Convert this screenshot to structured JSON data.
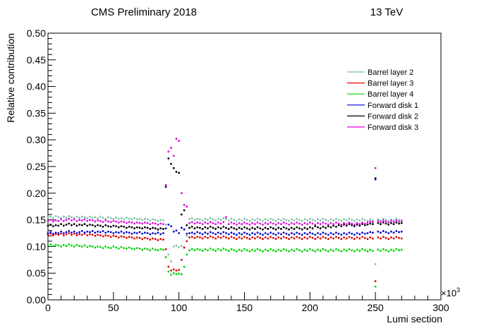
{
  "header": {
    "left": "CMS Preliminary 2018",
    "right": "13 TeV"
  },
  "chart_data": {
    "type": "scatter",
    "xlabel": "Lumi section",
    "ylabel": "Relative contribution",
    "x_multiplier_label": "×10",
    "x_multiplier_exp": "3",
    "xlim": [
      0,
      300
    ],
    "ylim": [
      0,
      0.5
    ],
    "x_ticks": [
      0,
      50,
      100,
      150,
      200,
      250,
      300
    ],
    "x_tick_labels": [
      "0",
      "50",
      "100",
      "150",
      "200",
      "250",
      "300"
    ],
    "y_ticks": [
      0,
      0.05,
      0.1,
      0.15,
      0.2,
      0.25,
      0.3,
      0.35,
      0.4,
      0.45,
      0.5
    ],
    "y_tick_labels": [
      "0.00",
      "0.05",
      "0.10",
      "0.15",
      "0.20",
      "0.25",
      "0.30",
      "0.35",
      "0.40",
      "0.45",
      "0.50"
    ],
    "grid": false,
    "legend_position": "top-right",
    "x": [
      0,
      2,
      4,
      6,
      8,
      10,
      12,
      14,
      16,
      18,
      20,
      22,
      24,
      26,
      28,
      30,
      32,
      34,
      36,
      38,
      40,
      42,
      44,
      46,
      48,
      50,
      52,
      54,
      56,
      58,
      60,
      62,
      64,
      66,
      68,
      70,
      72,
      74,
      76,
      78,
      80,
      82,
      84,
      86,
      88,
      90,
      92,
      94,
      96,
      98,
      100,
      102,
      104,
      106,
      108,
      110,
      112,
      114,
      116,
      118,
      120,
      122,
      124,
      126,
      128,
      130,
      132,
      134,
      136,
      138,
      140,
      142,
      144,
      146,
      148,
      150,
      152,
      154,
      156,
      158,
      160,
      162,
      164,
      166,
      168,
      170,
      172,
      174,
      176,
      178,
      180,
      182,
      184,
      186,
      188,
      190,
      192,
      194,
      196,
      198,
      200,
      202,
      204,
      206,
      208,
      210,
      212,
      214,
      216,
      218,
      220,
      222,
      224,
      226,
      228,
      230,
      232,
      234,
      236,
      238,
      240,
      242,
      244,
      246,
      248,
      250,
      252,
      254,
      256,
      258,
      260,
      262,
      264,
      266,
      268,
      270
    ],
    "series": [
      {
        "name": "Barrel layer 2",
        "color": "#7fbfa5",
        "values": [
          0.155,
          0.156,
          0.154,
          0.157,
          0.155,
          0.153,
          0.156,
          0.154,
          0.157,
          0.155,
          0.153,
          0.156,
          0.154,
          0.156,
          0.155,
          0.153,
          0.156,
          0.154,
          0.155,
          0.153,
          0.156,
          0.154,
          0.152,
          0.155,
          0.153,
          0.152,
          0.154,
          0.152,
          0.153,
          0.151,
          0.154,
          0.152,
          0.151,
          0.153,
          0.151,
          0.152,
          0.15,
          0.152,
          0.151,
          0.149,
          0.151,
          0.15,
          0.148,
          0.15,
          0.149,
          0.141,
          0.085,
          0.072,
          0.1,
          0.102,
          0.099,
          0.101,
          0.098,
          0.12,
          0.152,
          0.153,
          0.15,
          0.152,
          0.151,
          0.149,
          0.152,
          0.15,
          0.153,
          0.151,
          0.149,
          0.152,
          0.15,
          0.153,
          0.151,
          0.149,
          0.152,
          0.15,
          0.148,
          0.151,
          0.149,
          0.152,
          0.15,
          0.148,
          0.151,
          0.149,
          0.152,
          0.15,
          0.148,
          0.151,
          0.149,
          0.152,
          0.15,
          0.148,
          0.151,
          0.149,
          0.152,
          0.15,
          0.148,
          0.151,
          0.149,
          0.152,
          0.15,
          0.148,
          0.151,
          0.149,
          0.152,
          0.15,
          0.148,
          0.151,
          0.149,
          0.152,
          0.15,
          0.148,
          0.151,
          0.149,
          0.152,
          0.15,
          0.148,
          0.151,
          0.149,
          0.152,
          0.15,
          0.148,
          0.151,
          0.149,
          0.152,
          0.15,
          0.148,
          0.151,
          0.149,
          0.067,
          0.151,
          0.149,
          0.152,
          0.15,
          0.148,
          0.151,
          0.149,
          0.152,
          0.15,
          0.149
        ]
      },
      {
        "name": "Barrel layer 3",
        "color": "#e00000",
        "values": [
          0.122,
          0.124,
          0.121,
          0.123,
          0.122,
          0.124,
          0.121,
          0.123,
          0.125,
          0.122,
          0.124,
          0.121,
          0.123,
          0.122,
          0.124,
          0.121,
          0.123,
          0.122,
          0.12,
          0.122,
          0.121,
          0.119,
          0.121,
          0.12,
          0.118,
          0.12,
          0.119,
          0.117,
          0.119,
          0.118,
          0.116,
          0.118,
          0.117,
          0.115,
          0.117,
          0.116,
          0.114,
          0.116,
          0.115,
          0.113,
          0.115,
          0.114,
          0.112,
          0.114,
          0.113,
          0.095,
          0.062,
          0.055,
          0.057,
          0.055,
          0.056,
          0.075,
          0.098,
          0.11,
          0.117,
          0.118,
          0.116,
          0.118,
          0.117,
          0.115,
          0.118,
          0.116,
          0.119,
          0.117,
          0.115,
          0.118,
          0.116,
          0.119,
          0.117,
          0.115,
          0.118,
          0.116,
          0.114,
          0.117,
          0.115,
          0.118,
          0.116,
          0.114,
          0.117,
          0.115,
          0.118,
          0.116,
          0.114,
          0.117,
          0.115,
          0.118,
          0.116,
          0.114,
          0.117,
          0.115,
          0.118,
          0.116,
          0.114,
          0.117,
          0.115,
          0.118,
          0.116,
          0.114,
          0.117,
          0.115,
          0.118,
          0.116,
          0.114,
          0.117,
          0.115,
          0.118,
          0.116,
          0.114,
          0.117,
          0.115,
          0.118,
          0.116,
          0.114,
          0.117,
          0.115,
          0.118,
          0.116,
          0.114,
          0.117,
          0.115,
          0.118,
          0.116,
          0.114,
          0.117,
          0.115,
          0.035,
          0.117,
          0.115,
          0.118,
          0.116,
          0.114,
          0.117,
          0.115,
          0.118,
          0.116,
          0.115
        ]
      },
      {
        "name": "Barrel layer 4",
        "color": "#00d000",
        "values": [
          0.102,
          0.104,
          0.101,
          0.103,
          0.102,
          0.1,
          0.103,
          0.101,
          0.104,
          0.102,
          0.1,
          0.103,
          0.101,
          0.1,
          0.102,
          0.099,
          0.101,
          0.1,
          0.098,
          0.1,
          0.099,
          0.097,
          0.1,
          0.098,
          0.097,
          0.1,
          0.098,
          0.096,
          0.099,
          0.097,
          0.096,
          0.098,
          0.096,
          0.095,
          0.097,
          0.096,
          0.094,
          0.096,
          0.095,
          0.093,
          0.096,
          0.094,
          0.093,
          0.095,
          0.094,
          0.08,
          0.053,
          0.047,
          0.05,
          0.048,
          0.049,
          0.048,
          0.062,
          0.085,
          0.093,
          0.095,
          0.093,
          0.095,
          0.094,
          0.092,
          0.095,
          0.093,
          0.096,
          0.094,
          0.092,
          0.095,
          0.093,
          0.096,
          0.094,
          0.092,
          0.095,
          0.093,
          0.091,
          0.094,
          0.092,
          0.095,
          0.093,
          0.091,
          0.094,
          0.092,
          0.095,
          0.093,
          0.091,
          0.094,
          0.092,
          0.095,
          0.093,
          0.091,
          0.094,
          0.092,
          0.095,
          0.093,
          0.091,
          0.094,
          0.092,
          0.095,
          0.093,
          0.091,
          0.094,
          0.092,
          0.095,
          0.093,
          0.091,
          0.094,
          0.092,
          0.095,
          0.093,
          0.091,
          0.094,
          0.092,
          0.095,
          0.093,
          0.091,
          0.094,
          0.092,
          0.095,
          0.093,
          0.091,
          0.094,
          0.092,
          0.095,
          0.093,
          0.091,
          0.094,
          0.092,
          0.025,
          0.094,
          0.092,
          0.095,
          0.093,
          0.091,
          0.094,
          0.092,
          0.095,
          0.093,
          0.094
        ]
      },
      {
        "name": "Forward disk 1",
        "color": "#0000d0",
        "values": [
          0.125,
          0.127,
          0.124,
          0.126,
          0.125,
          0.128,
          0.125,
          0.127,
          0.129,
          0.126,
          0.128,
          0.125,
          0.127,
          0.129,
          0.126,
          0.128,
          0.127,
          0.129,
          0.126,
          0.128,
          0.127,
          0.129,
          0.126,
          0.128,
          0.127,
          0.125,
          0.127,
          0.126,
          0.128,
          0.125,
          0.127,
          0.126,
          0.124,
          0.126,
          0.125,
          0.127,
          0.124,
          0.126,
          0.125,
          0.123,
          0.125,
          0.124,
          0.126,
          0.123,
          0.125,
          0.134,
          0.141,
          0.138,
          0.128,
          0.13,
          0.125,
          0.135,
          0.132,
          0.124,
          0.125,
          0.126,
          0.124,
          0.127,
          0.125,
          0.123,
          0.126,
          0.124,
          0.127,
          0.125,
          0.123,
          0.126,
          0.124,
          0.127,
          0.125,
          0.123,
          0.126,
          0.124,
          0.122,
          0.125,
          0.123,
          0.126,
          0.124,
          0.122,
          0.125,
          0.123,
          0.126,
          0.124,
          0.122,
          0.125,
          0.123,
          0.126,
          0.124,
          0.122,
          0.125,
          0.123,
          0.126,
          0.124,
          0.122,
          0.125,
          0.123,
          0.126,
          0.124,
          0.122,
          0.125,
          0.123,
          0.126,
          0.124,
          0.122,
          0.125,
          0.123,
          0.126,
          0.124,
          0.122,
          0.125,
          0.123,
          0.126,
          0.124,
          0.122,
          0.125,
          0.123,
          0.126,
          0.124,
          0.122,
          0.125,
          0.123,
          0.126,
          0.124,
          0.125,
          0.127,
          0.126,
          0.226,
          0.128,
          0.126,
          0.129,
          0.127,
          0.125,
          0.128,
          0.126,
          0.129,
          0.127,
          0.128
        ]
      },
      {
        "name": "Forward disk 2",
        "color": "#000000",
        "values": [
          0.139,
          0.141,
          0.138,
          0.14,
          0.139,
          0.142,
          0.139,
          0.141,
          0.143,
          0.14,
          0.142,
          0.139,
          0.141,
          0.14,
          0.142,
          0.139,
          0.141,
          0.14,
          0.138,
          0.14,
          0.139,
          0.137,
          0.14,
          0.138,
          0.137,
          0.139,
          0.138,
          0.136,
          0.138,
          0.137,
          0.135,
          0.137,
          0.136,
          0.134,
          0.136,
          0.135,
          0.134,
          0.136,
          0.135,
          0.133,
          0.135,
          0.134,
          0.132,
          0.134,
          0.133,
          0.212,
          0.265,
          0.255,
          0.247,
          0.24,
          0.238,
          0.16,
          0.168,
          0.14,
          0.135,
          0.137,
          0.134,
          0.136,
          0.135,
          0.133,
          0.136,
          0.134,
          0.137,
          0.135,
          0.133,
          0.136,
          0.134,
          0.137,
          0.135,
          0.133,
          0.136,
          0.134,
          0.132,
          0.135,
          0.133,
          0.136,
          0.134,
          0.132,
          0.135,
          0.133,
          0.136,
          0.134,
          0.132,
          0.135,
          0.133,
          0.136,
          0.134,
          0.132,
          0.135,
          0.133,
          0.136,
          0.134,
          0.132,
          0.135,
          0.133,
          0.136,
          0.134,
          0.132,
          0.135,
          0.133,
          0.136,
          0.134,
          0.138,
          0.136,
          0.134,
          0.137,
          0.135,
          0.138,
          0.136,
          0.139,
          0.137,
          0.14,
          0.138,
          0.141,
          0.139,
          0.142,
          0.14,
          0.138,
          0.141,
          0.139,
          0.142,
          0.14,
          0.141,
          0.143,
          0.142,
          0.228,
          0.144,
          0.142,
          0.145,
          0.143,
          0.141,
          0.144,
          0.142,
          0.145,
          0.143,
          0.144
        ]
      },
      {
        "name": "Forward disk 3",
        "color": "#e000e0",
        "values": [
          0.148,
          0.15,
          0.147,
          0.149,
          0.148,
          0.151,
          0.148,
          0.15,
          0.152,
          0.149,
          0.151,
          0.148,
          0.15,
          0.149,
          0.151,
          0.148,
          0.15,
          0.149,
          0.147,
          0.149,
          0.148,
          0.146,
          0.149,
          0.147,
          0.146,
          0.148,
          0.147,
          0.145,
          0.147,
          0.146,
          0.144,
          0.146,
          0.145,
          0.143,
          0.145,
          0.144,
          0.143,
          0.145,
          0.144,
          0.142,
          0.144,
          0.143,
          0.141,
          0.143,
          0.142,
          0.215,
          0.278,
          0.285,
          0.27,
          0.302,
          0.298,
          0.2,
          0.178,
          0.175,
          0.144,
          0.146,
          0.143,
          0.145,
          0.144,
          0.142,
          0.145,
          0.143,
          0.146,
          0.144,
          0.142,
          0.145,
          0.143,
          0.146,
          0.155,
          0.142,
          0.145,
          0.143,
          0.141,
          0.144,
          0.142,
          0.145,
          0.143,
          0.141,
          0.144,
          0.142,
          0.145,
          0.143,
          0.141,
          0.144,
          0.142,
          0.145,
          0.143,
          0.141,
          0.144,
          0.142,
          0.145,
          0.143,
          0.141,
          0.144,
          0.142,
          0.145,
          0.143,
          0.141,
          0.144,
          0.142,
          0.145,
          0.143,
          0.141,
          0.144,
          0.142,
          0.145,
          0.143,
          0.141,
          0.144,
          0.142,
          0.145,
          0.143,
          0.141,
          0.144,
          0.142,
          0.145,
          0.143,
          0.141,
          0.144,
          0.142,
          0.145,
          0.143,
          0.145,
          0.147,
          0.146,
          0.247,
          0.148,
          0.146,
          0.149,
          0.147,
          0.145,
          0.148,
          0.146,
          0.149,
          0.147,
          0.148
        ]
      }
    ]
  }
}
